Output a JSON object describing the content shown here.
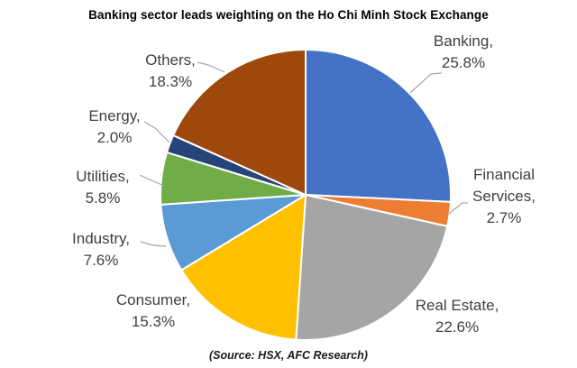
{
  "chart_data": {
    "type": "pie",
    "title": "Banking sector leads weighting on the Ho Chi Minh Stock Exchange",
    "source": "(Source: HSX, AFC Research)",
    "direction": "clockwise",
    "start_angle_deg": 0,
    "legend_position": "none",
    "labels_style": "outside callouts with leader lines",
    "text_color": "#404040",
    "leader_line_color": "#A6A6A6",
    "slice_border_color": "#FFFFFF",
    "segments": [
      {
        "name": "Banking",
        "value": 25.8,
        "color": "#4472C4",
        "callout": [
          "Banking,",
          "25.8%"
        ]
      },
      {
        "name": "Financial Services",
        "value": 2.7,
        "color": "#ED7D31",
        "callout": [
          "Financial",
          "Services,",
          "2.7%"
        ]
      },
      {
        "name": "Real Estate",
        "value": 22.6,
        "color": "#A5A5A5",
        "callout": [
          "Real Estate,",
          "22.6%"
        ]
      },
      {
        "name": "Consumer",
        "value": 15.3,
        "color": "#FFC000",
        "callout": [
          "Consumer,",
          "15.3%"
        ]
      },
      {
        "name": "Industry",
        "value": 7.6,
        "color": "#5B9BD5",
        "callout": [
          "Industry,",
          "7.6%"
        ]
      },
      {
        "name": "Utilities",
        "value": 5.8,
        "color": "#70AD47",
        "callout": [
          "Utilities,",
          "5.8%"
        ]
      },
      {
        "name": "Energy",
        "value": 2.0,
        "color": "#264478",
        "callout": [
          "Energy,",
          "2.0%"
        ]
      },
      {
        "name": "Others",
        "value": 18.3,
        "color": "#9E480E",
        "callout": [
          "Others,",
          "18.3%"
        ]
      }
    ]
  }
}
